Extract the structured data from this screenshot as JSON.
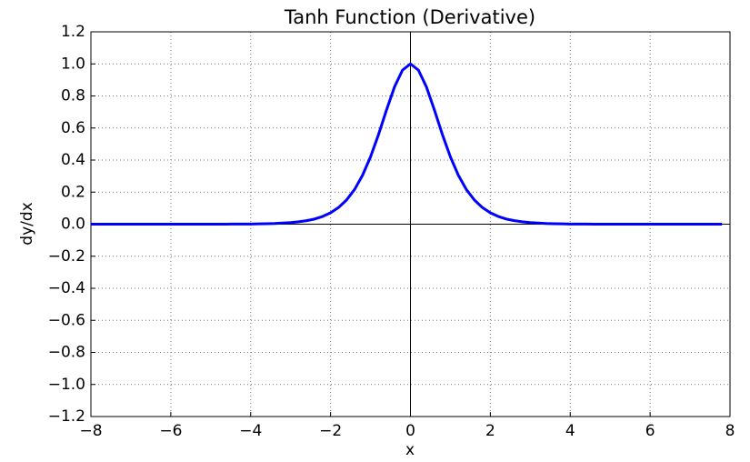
{
  "chart_data": {
    "type": "line",
    "title": "Tanh Function (Derivative)",
    "xlabel": "x",
    "ylabel": "dy/dx",
    "x": [
      -8.0,
      -7.8,
      -7.6,
      -7.4,
      -7.2,
      -7.0,
      -6.8,
      -6.6,
      -6.4,
      -6.2,
      -6.0,
      -5.8,
      -5.6,
      -5.4,
      -5.2,
      -5.0,
      -4.8,
      -4.6,
      -4.4,
      -4.2,
      -4.0,
      -3.8,
      -3.6,
      -3.4,
      -3.2,
      -3.0,
      -2.8,
      -2.6,
      -2.4,
      -2.2,
      -2.0,
      -1.8,
      -1.6,
      -1.4,
      -1.2,
      -1.0,
      -0.8,
      -0.6,
      -0.4,
      -0.2,
      0.0,
      0.2,
      0.4,
      0.6,
      0.8,
      1.0,
      1.2,
      1.4,
      1.6,
      1.8,
      2.0,
      2.2,
      2.4,
      2.6,
      2.8,
      3.0,
      3.2,
      3.4,
      3.6,
      3.8,
      4.0,
      4.2,
      4.4,
      4.6,
      4.8,
      5.0,
      5.2,
      5.4,
      5.6,
      5.8,
      6.0,
      6.2,
      6.4,
      6.6,
      6.8,
      7.0,
      7.2,
      7.4,
      7.6,
      7.8
    ],
    "series": [
      {
        "name": "dy/dx",
        "color": "#0000ff",
        "values": [
          0,
          0,
          0,
          0,
          0,
          0,
          0,
          0,
          0,
          0,
          0,
          0,
          0,
          0,
          0,
          0,
          0,
          0,
          0.001,
          0.001,
          0.001,
          0.002,
          0.003,
          0.004,
          0.007,
          0.01,
          0.015,
          0.022,
          0.032,
          0.048,
          0.071,
          0.104,
          0.151,
          0.216,
          0.305,
          0.42,
          0.559,
          0.712,
          0.856,
          0.961,
          1.0,
          0.961,
          0.856,
          0.712,
          0.559,
          0.42,
          0.305,
          0.216,
          0.151,
          0.104,
          0.071,
          0.048,
          0.032,
          0.022,
          0.015,
          0.01,
          0.007,
          0.004,
          0.003,
          0.002,
          0.001,
          0.001,
          0.001,
          0,
          0,
          0,
          0,
          0,
          0,
          0,
          0,
          0,
          0,
          0,
          0,
          0,
          0,
          0,
          0,
          0
        ]
      }
    ],
    "xlim": [
      -8,
      8
    ],
    "ylim": [
      -1.2,
      1.2
    ],
    "xticks": [
      {
        "value": -8,
        "label": "−8"
      },
      {
        "value": -6,
        "label": "−6"
      },
      {
        "value": -4,
        "label": "−4"
      },
      {
        "value": -2,
        "label": "−2"
      },
      0,
      2,
      4,
      6,
      8
    ],
    "yticks": [
      {
        "value": -1.2,
        "label": "−1.2"
      },
      {
        "value": -1.0,
        "label": "−1.0"
      },
      {
        "value": -0.8,
        "label": "−0.8"
      },
      {
        "value": -0.6,
        "label": "−0.6"
      },
      {
        "value": -0.4,
        "label": "−0.4"
      },
      {
        "value": -0.2,
        "label": "−0.2"
      },
      {
        "value": 0,
        "label": "0.0"
      },
      {
        "value": 0.2,
        "label": "0.2"
      },
      {
        "value": 0.4,
        "label": "0.4"
      },
      {
        "value": 0.6,
        "label": "0.6"
      },
      {
        "value": 0.8,
        "label": "0.8"
      },
      {
        "value": 1.0,
        "label": "1.0"
      },
      {
        "value": 1.2,
        "label": "1.2"
      }
    ],
    "grid": true
  }
}
